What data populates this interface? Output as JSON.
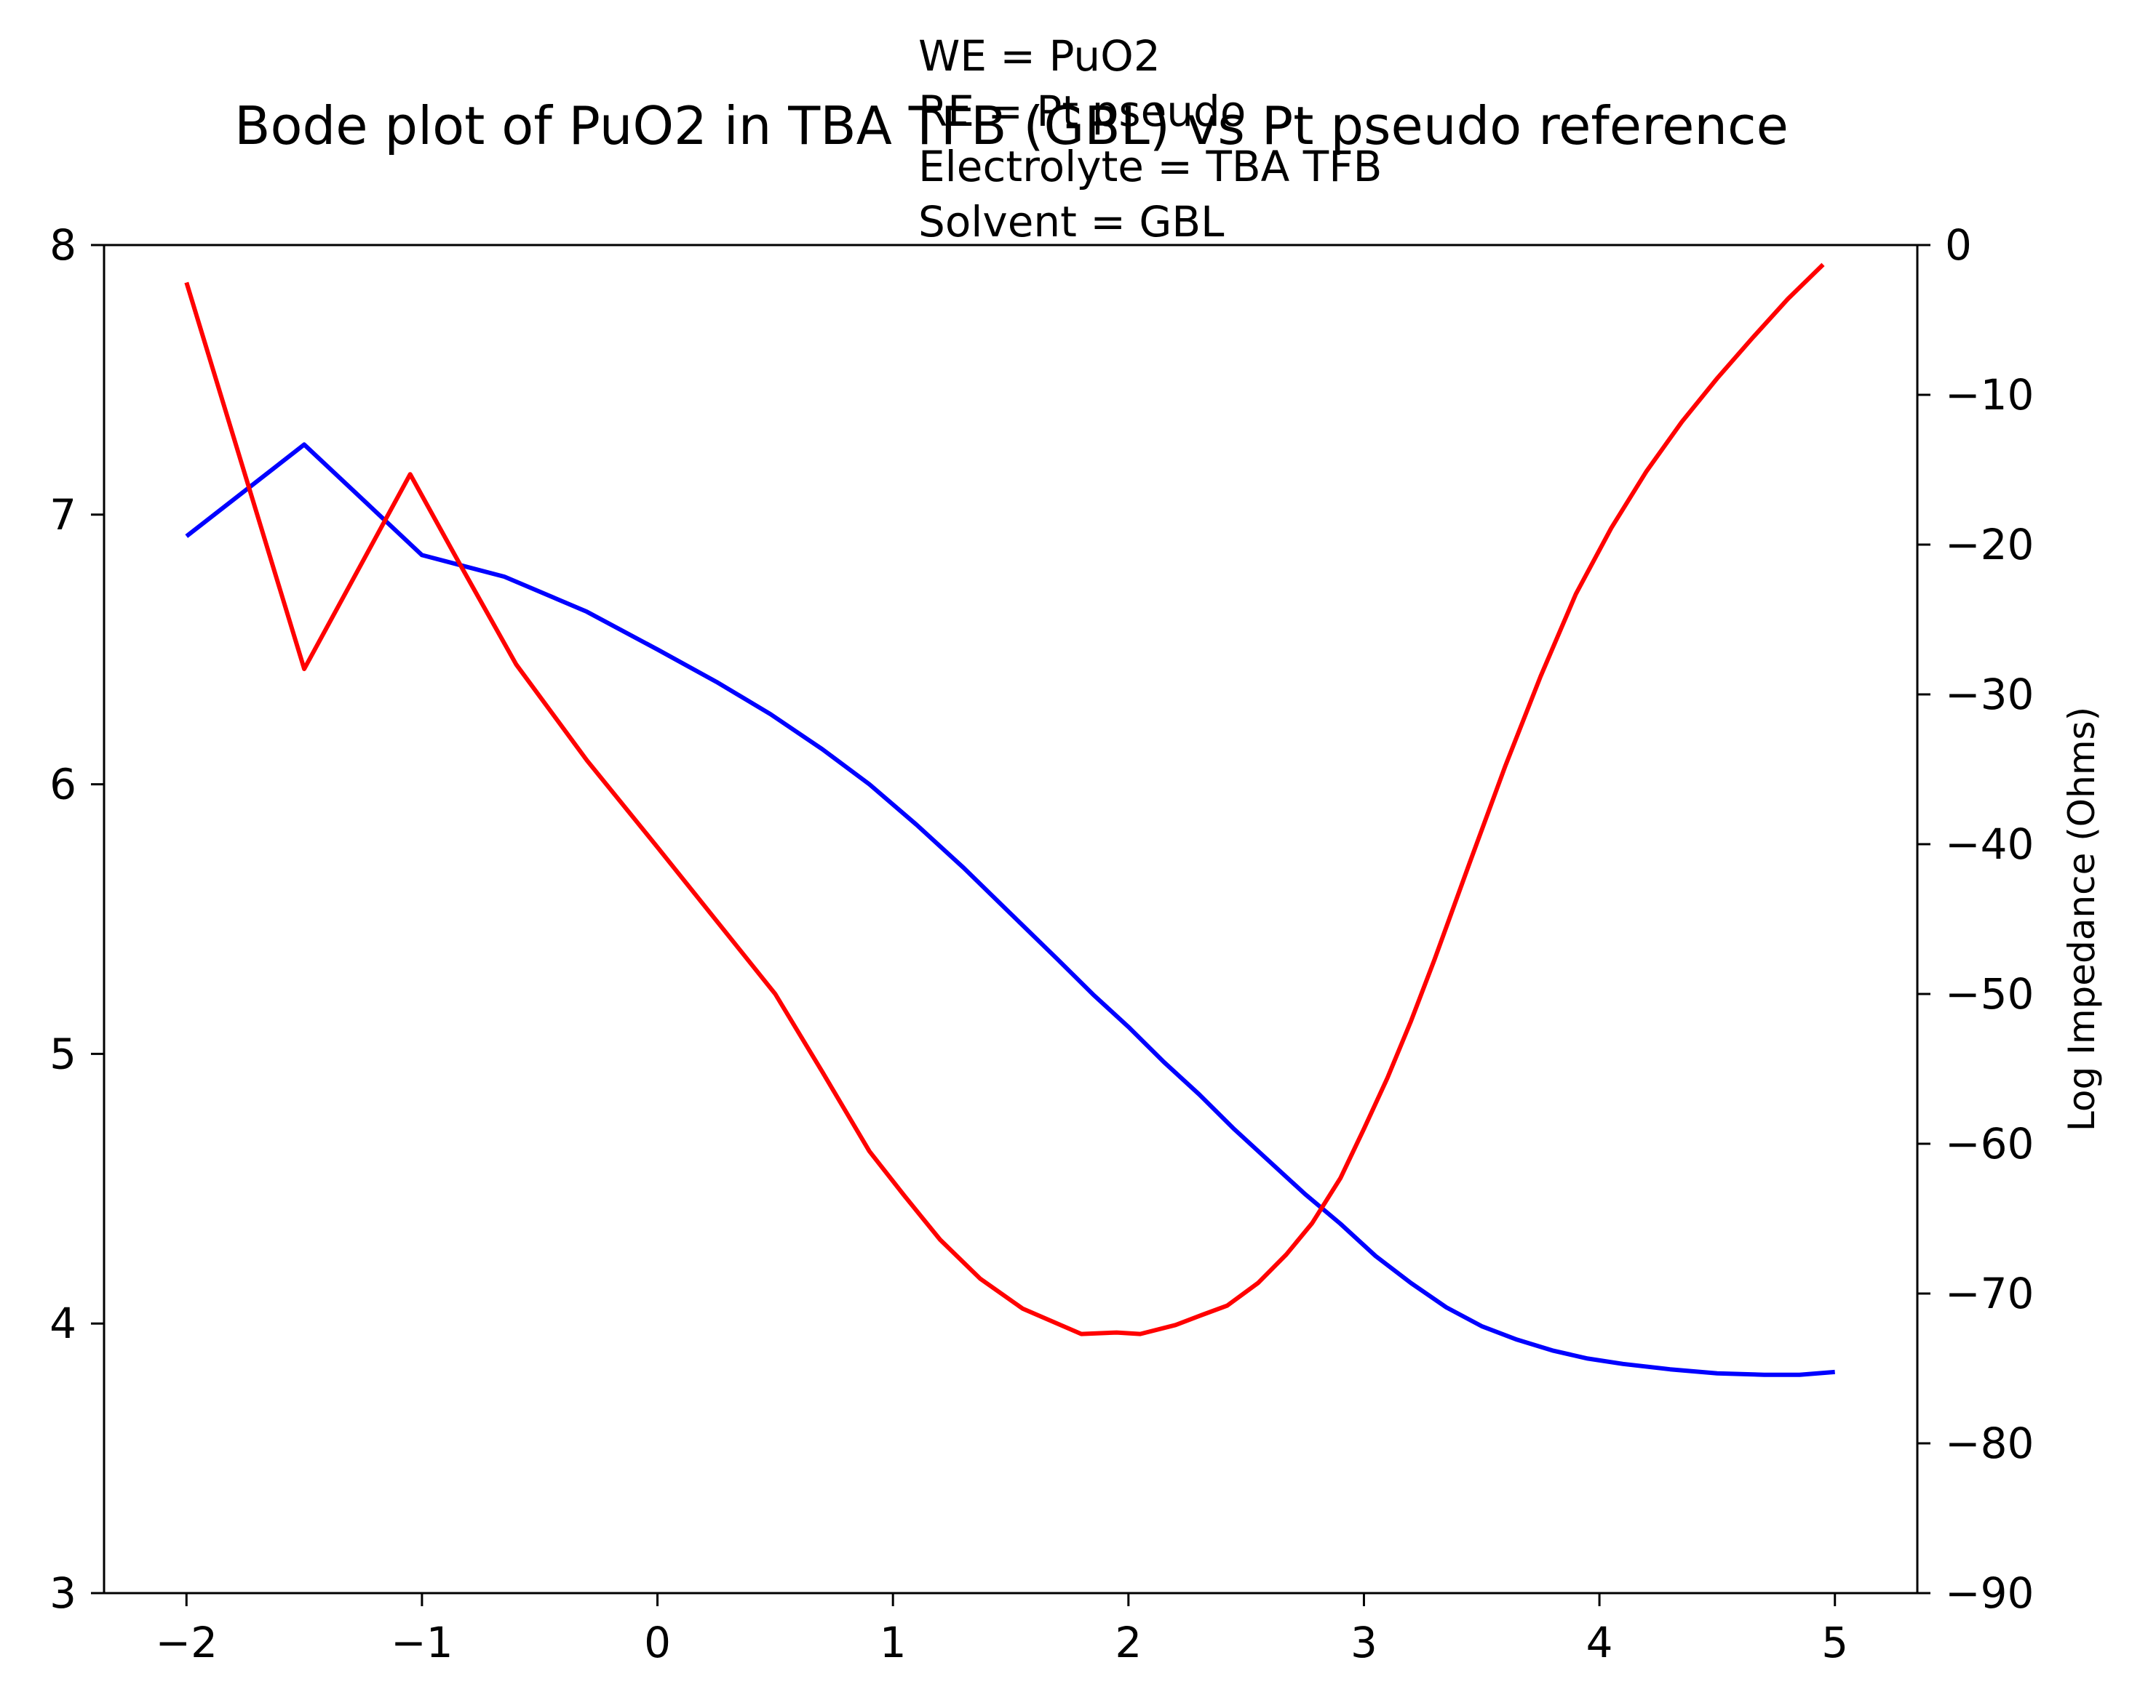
{
  "chart_data": {
    "type": "line",
    "title": "Bode plot of PuO2 in TBA TFB (GBL) vs Pt pseudo reference",
    "annotation": [
      "WE = PuO2",
      "RE = Pt pseudo",
      "Electrolyte = TBA TFB",
      "Solvent = GBL"
    ],
    "xlabel": "",
    "ylabel_left": "",
    "ylabel_right": "Log Impedance (Ohms)",
    "xlim": [
      -2.35,
      5.35
    ],
    "ylim_left": [
      3,
      8
    ],
    "ylim_right": [
      -90,
      0
    ],
    "grid": false,
    "x_ticks": [
      -2,
      -1,
      0,
      1,
      2,
      3,
      4,
      5
    ],
    "x_tick_labels": [
      "−2",
      "−1",
      "0",
      "1",
      "2",
      "3",
      "4",
      "5"
    ],
    "y_left_ticks": [
      3,
      4,
      5,
      6,
      7,
      8
    ],
    "y_left_tick_labels": [
      "3",
      "4",
      "5",
      "6",
      "7",
      "8"
    ],
    "y_right_ticks": [
      0,
      -10,
      -20,
      -30,
      -40,
      -50,
      -60,
      -70,
      -80,
      -90
    ],
    "y_right_tick_labels": [
      "0",
      "−10",
      "−20",
      "−30",
      "−40",
      "−50",
      "−60",
      "−70",
      "−80",
      "−90"
    ],
    "series": [
      {
        "axis": "left",
        "color": "#0000ff",
        "x": [
          -2.0,
          -1.5,
          -1.0,
          -0.65,
          -0.3,
          0.0,
          0.25,
          0.48,
          0.7,
          0.9,
          1.1,
          1.3,
          1.5,
          1.7,
          1.85,
          2.0,
          2.15,
          2.3,
          2.45,
          2.6,
          2.75,
          2.9,
          3.05,
          3.2,
          3.35,
          3.5,
          3.65,
          3.8,
          3.95,
          4.1,
          4.3,
          4.5,
          4.7,
          4.85,
          5.0
        ],
        "y": [
          6.92,
          7.26,
          6.85,
          6.77,
          6.64,
          6.5,
          6.38,
          6.26,
          6.13,
          6.0,
          5.85,
          5.69,
          5.52,
          5.35,
          5.22,
          5.1,
          4.97,
          4.85,
          4.72,
          4.6,
          4.48,
          4.37,
          4.25,
          4.15,
          4.06,
          3.99,
          3.94,
          3.9,
          3.87,
          3.85,
          3.83,
          3.815,
          3.81,
          3.81,
          3.82
        ]
      },
      {
        "axis": "right",
        "color": "#ff0000",
        "x": [
          -2.0,
          -1.5,
          -1.05,
          -0.85,
          -0.6,
          -0.3,
          0.0,
          0.25,
          0.5,
          0.7,
          0.9,
          1.05,
          1.2,
          1.37,
          1.55,
          1.8,
          1.95,
          2.05,
          2.2,
          2.3,
          2.42,
          2.55,
          2.67,
          2.78,
          2.9,
          3.0,
          3.1,
          3.2,
          3.3,
          3.45,
          3.6,
          3.75,
          3.9,
          4.05,
          4.2,
          4.35,
          4.5,
          4.65,
          4.8,
          4.95
        ],
        "y": [
          -2.5,
          -28.3,
          -15.3,
          -21.0,
          -28.0,
          -34.4,
          -40.2,
          -45.1,
          -50.0,
          -55.2,
          -60.5,
          -63.5,
          -66.4,
          -69.0,
          -71.0,
          -72.7,
          -72.6,
          -72.7,
          -72.1,
          -71.5,
          -70.8,
          -69.3,
          -67.4,
          -65.3,
          -62.3,
          -59.0,
          -55.6,
          -51.8,
          -47.7,
          -41.2,
          -34.8,
          -28.8,
          -23.3,
          -18.9,
          -15.1,
          -11.8,
          -8.9,
          -6.2,
          -3.6,
          -1.3
        ]
      }
    ]
  }
}
